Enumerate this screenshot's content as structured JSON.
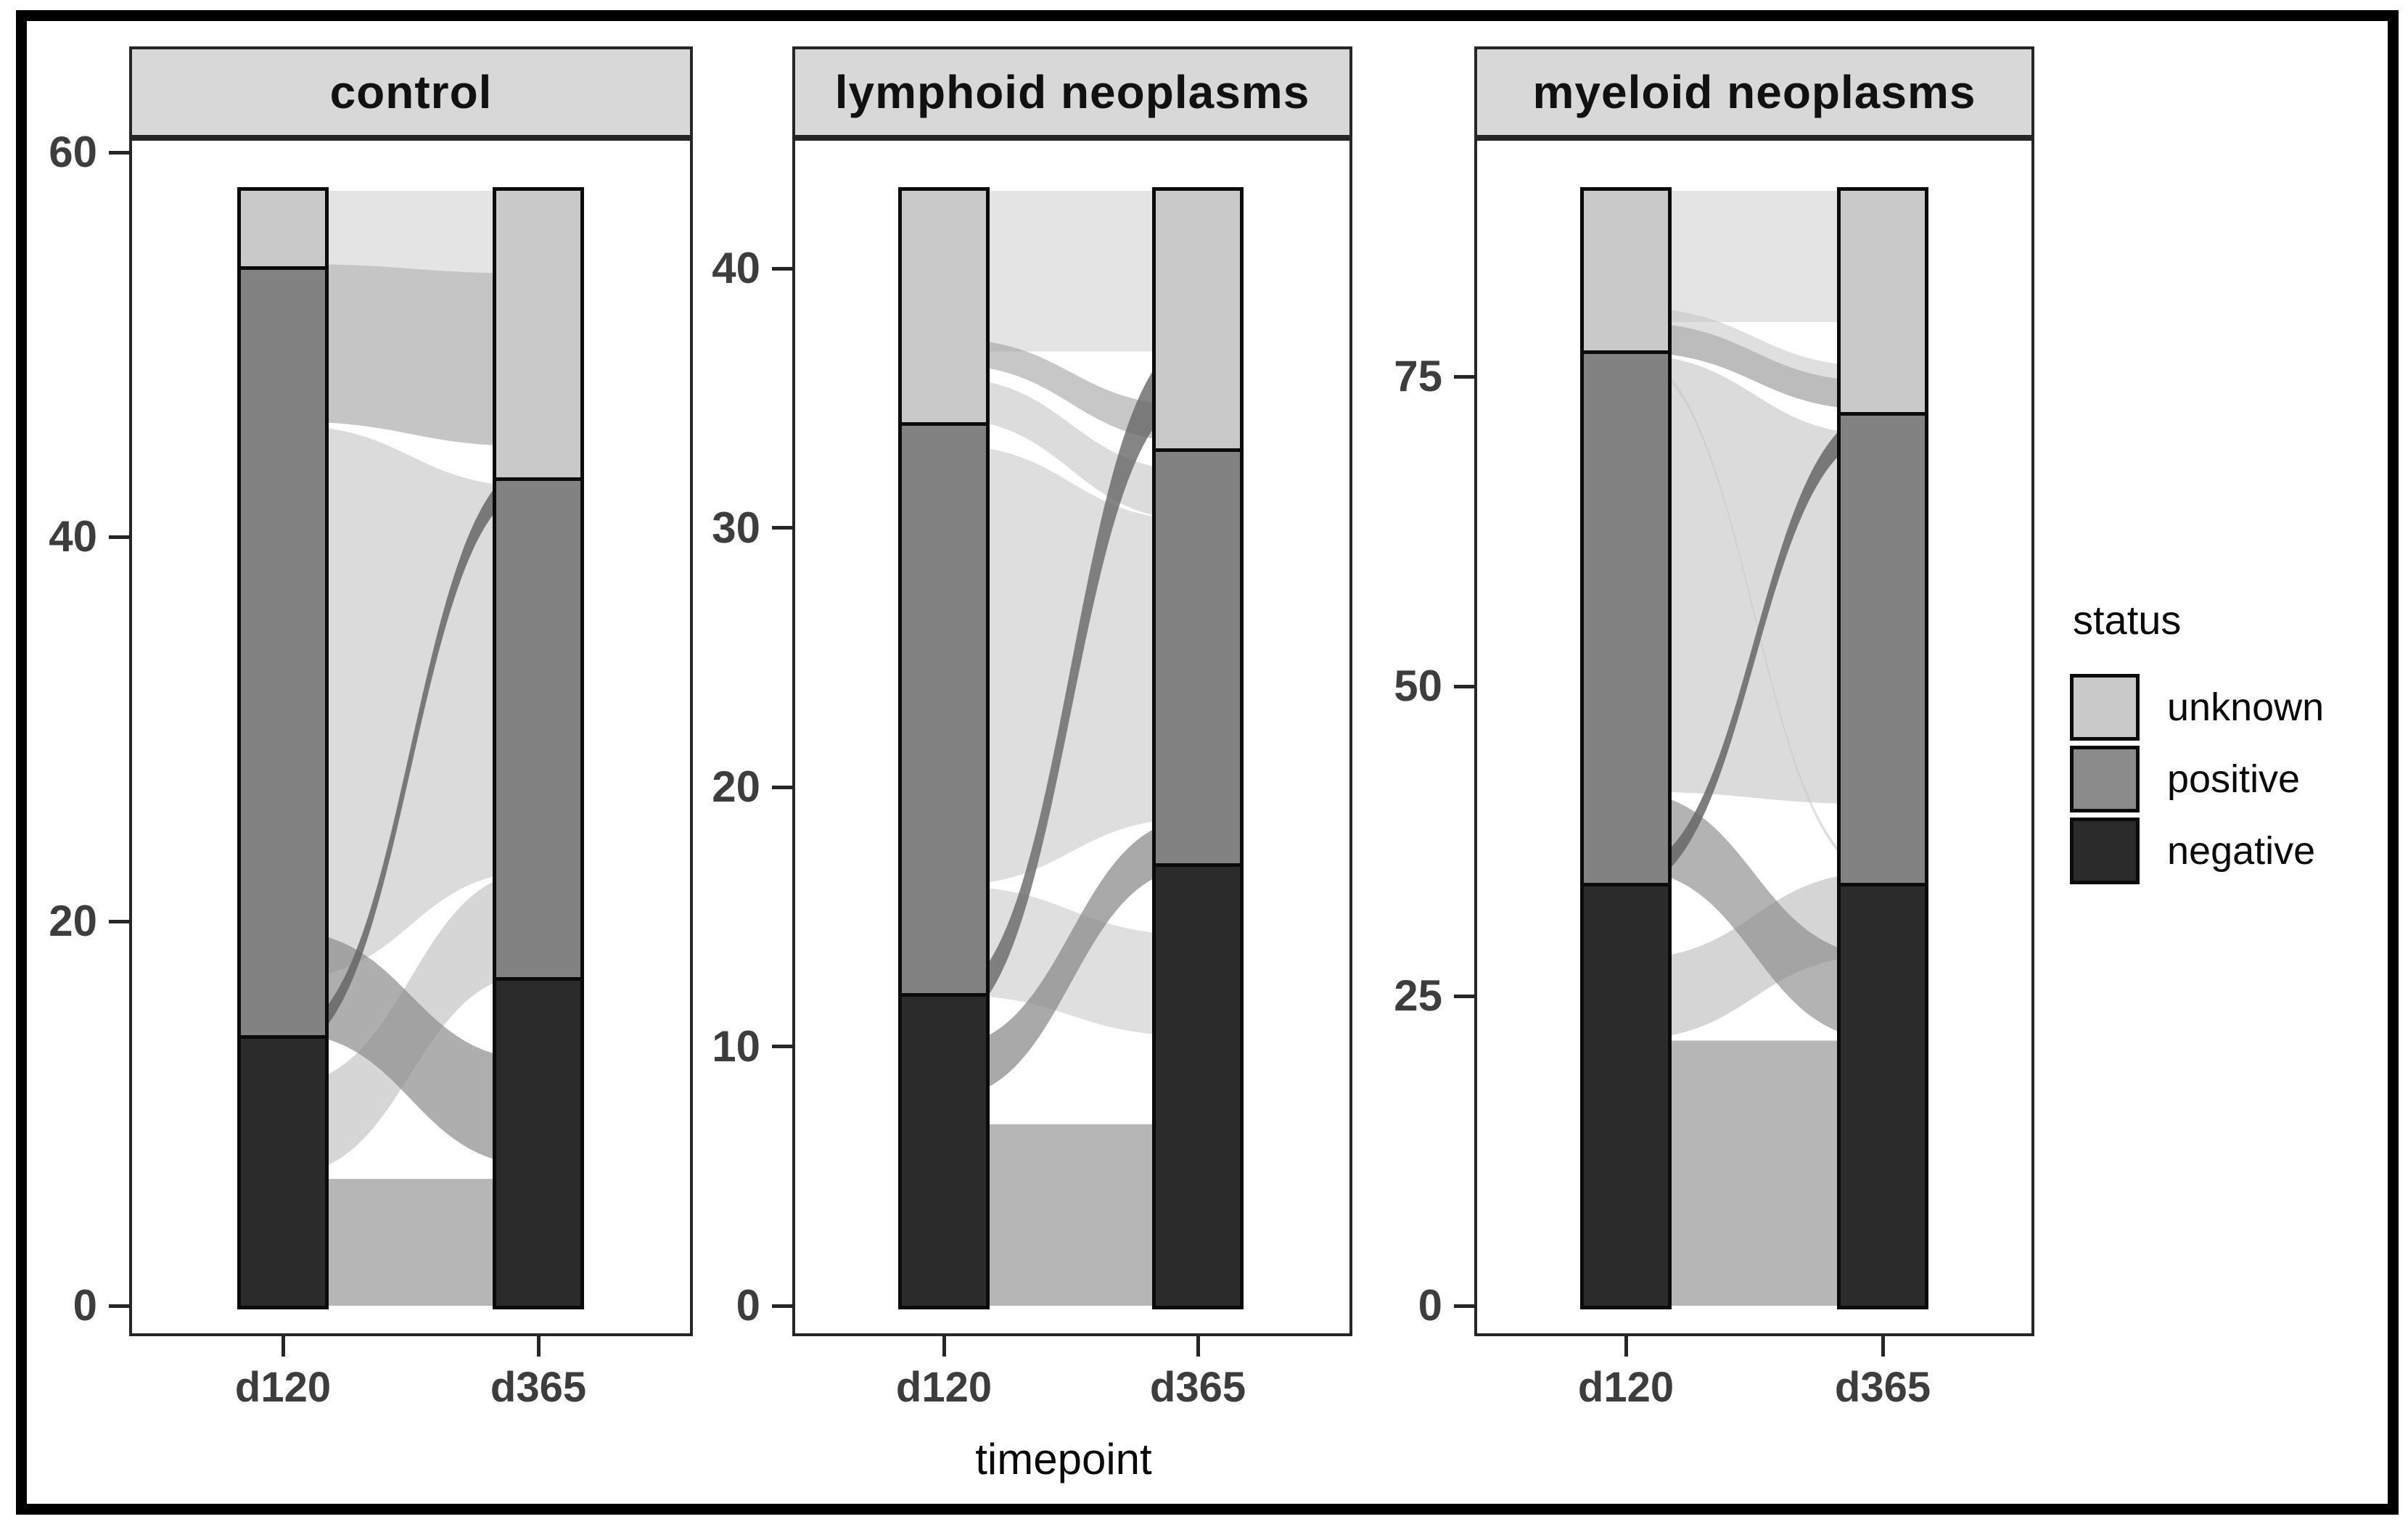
{
  "xlabel": "timepoint",
  "legend": {
    "title": "status",
    "entries": [
      {
        "label": "unknown",
        "color": "#c9c9c9"
      },
      {
        "label": "positive",
        "color": "#8b8b8b"
      },
      {
        "label": "negative",
        "color": "#2b2b2b"
      }
    ]
  },
  "chart_data": {
    "type": "alluvial",
    "xlabel": "timepoint",
    "x_categories": [
      "d120",
      "d365"
    ],
    "legend_title": "status",
    "legend_position": "right",
    "statuses": [
      "unknown",
      "positive",
      "negative"
    ],
    "status_colors": {
      "unknown": "#c9c9c9",
      "positive": "#828282",
      "negative": "#2b2b2b"
    },
    "grid": false,
    "facets": [
      {
        "title": "control",
        "y_ticks": [
          0,
          20,
          40,
          60
        ],
        "y_range": [
          0,
          61
        ],
        "total": 58,
        "bars": [
          {
            "timepoint": "d120",
            "negative": 14,
            "positive": 40,
            "unknown": 4
          },
          {
            "timepoint": "d365",
            "negative": 17,
            "positive": 26,
            "unknown": 15
          }
        ],
        "flows": [
          {
            "from": [
              17,
              45.8
            ],
            "to": [
              22.6,
              42.6
            ],
            "color": "#b0b0b0",
            "opacity": 0.45
          },
          {
            "from": [
              6.8,
              11.5
            ],
            "to": [
              17.3,
              22.6
            ],
            "color": "#b5b5b5",
            "opacity": 0.55
          },
          {
            "from": [
              54.2,
              58
            ],
            "to": [
              53.7,
              58
            ],
            "color": "#c9c9c9",
            "opacity": 0.5
          },
          {
            "from": [
              46,
              54.2
            ],
            "to": [
              44.7,
              53.7
            ],
            "color": "#8b8b8b",
            "opacity": 0.5
          },
          {
            "from": [
              0,
              6.6
            ],
            "to": [
              0,
              6.6
            ],
            "color": "#9e9e9e",
            "opacity": 0.75
          },
          {
            "from": [
              14.2,
              19.5
            ],
            "to": [
              7.3,
              12.8
            ],
            "color": "#8b8b8b",
            "opacity": 0.7
          },
          {
            "from": [
              13.2,
              14.2
            ],
            "to": [
              42.6,
              43.9
            ],
            "color": "#666666",
            "opacity": 0.85
          }
        ]
      },
      {
        "title": "lymphoid neoplasms",
        "y_ticks": [
          0,
          10,
          20,
          30,
          40
        ],
        "y_range": [
          0,
          43.5
        ],
        "total": 43,
        "bars": [
          {
            "timepoint": "d120",
            "negative": 12,
            "positive": 22,
            "unknown": 9
          },
          {
            "timepoint": "d365",
            "negative": 17,
            "positive": 16,
            "unknown": 10
          }
        ],
        "flows": [
          {
            "from": [
              16.2,
              33.2
            ],
            "to": [
              18.8,
              30.3
            ],
            "color": "#b0b0b0",
            "opacity": 0.42
          },
          {
            "from": [
              34.2,
              35.8
            ],
            "to": [
              30.3,
              32.2
            ],
            "color": "#c0c0c0",
            "opacity": 0.55
          },
          {
            "from": [
              36.8,
              43
            ],
            "to": [
              36.8,
              43
            ],
            "color": "#c9c9c9",
            "opacity": 0.5
          },
          {
            "from": [
              12,
              16.2
            ],
            "to": [
              10.4,
              14.3
            ],
            "color": "#c0c0c0",
            "opacity": 0.5
          },
          {
            "from": [
              36.3,
              37.3
            ],
            "to": [
              33.3,
              34.7
            ],
            "color": "#999999",
            "opacity": 0.55
          },
          {
            "from": [
              0,
              7
            ],
            "to": [
              0,
              7
            ],
            "color": "#9e9e9e",
            "opacity": 0.75
          },
          {
            "from": [
              8,
              10
            ],
            "to": [
              16.9,
              18.8
            ],
            "color": "#858585",
            "opacity": 0.7
          },
          {
            "from": [
              10.8,
              12
            ],
            "to": [
              35,
              37.3
            ],
            "color": "#666666",
            "opacity": 0.8
          }
        ]
      },
      {
        "title": "myeloid neoplasms",
        "y_ticks": [
          0,
          25,
          50,
          75
        ],
        "y_range": [
          0,
          90.5
        ],
        "total": 90,
        "bars": [
          {
            "timepoint": "d120",
            "negative": 34,
            "positive": 43,
            "unknown": 13
          },
          {
            "timepoint": "d365",
            "negative": 34,
            "positive": 38,
            "unknown": 18
          }
        ],
        "flows": [
          {
            "from": [
              41.5,
              76.8
            ],
            "to": [
              40.5,
              70.3
            ],
            "color": "#b0b0b0",
            "opacity": 0.45
          },
          {
            "from": [
              79.4,
              90
            ],
            "to": [
              79.4,
              90
            ],
            "color": "#c9c9c9",
            "opacity": 0.5
          },
          {
            "from": [
              79.4,
              80.6
            ],
            "to": [
              74.6,
              75.8
            ],
            "color": "#c0c0c0",
            "opacity": 0.5
          },
          {
            "from": [
              76.6,
              77
            ],
            "to": [
              34.6,
              35
            ],
            "color": "#c8c8c8",
            "opacity": 0.6
          },
          {
            "from": [
              21.5,
              28
            ],
            "to": [
              28.3,
              35
            ],
            "color": "#b2b2b2",
            "opacity": 0.55
          },
          {
            "from": [
              0,
              21.4
            ],
            "to": [
              0,
              21.4
            ],
            "color": "#9e9e9e",
            "opacity": 0.75
          },
          {
            "from": [
              77,
              79.4
            ],
            "to": [
              72.3,
              74.6
            ],
            "color": "#8f8f8f",
            "opacity": 0.6
          },
          {
            "from": [
              35.2,
              41.5
            ],
            "to": [
              21.5,
              28.3
            ],
            "color": "#8b8b8b",
            "opacity": 0.65
          },
          {
            "from": [
              33.6,
              35.2
            ],
            "to": [
              70.3,
              72.3
            ],
            "color": "#666666",
            "opacity": 0.85
          }
        ]
      }
    ]
  }
}
